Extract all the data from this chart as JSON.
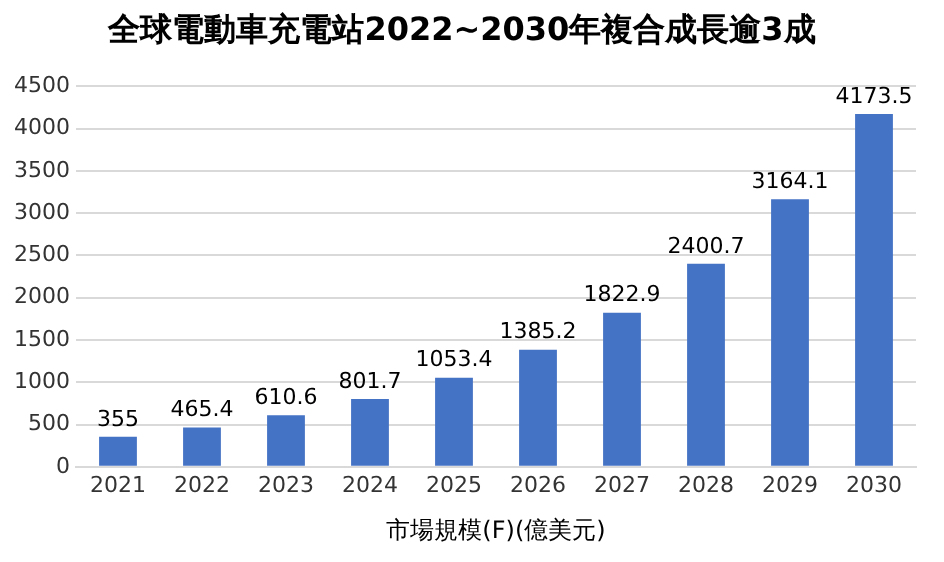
{
  "chart_data": {
    "type": "bar",
    "title": "全球電動車充電站2022~2030年複合成長逾3成",
    "xlabel": "市場規模(F)(億美元)",
    "categories": [
      "2021",
      "2022",
      "2023",
      "2024",
      "2025",
      "2026",
      "2027",
      "2028",
      "2029",
      "2030"
    ],
    "values": [
      355,
      465.4,
      610.6,
      801.7,
      1053.4,
      1385.2,
      1822.9,
      2400.7,
      3164.1,
      4173.5
    ],
    "color": "#4472c4",
    "ylim": [
      0,
      4500
    ],
    "yticks": [
      0,
      500,
      1000,
      1500,
      2000,
      2500,
      3000,
      3500,
      4000,
      4500
    ],
    "grid": "y",
    "data_labels": true
  }
}
